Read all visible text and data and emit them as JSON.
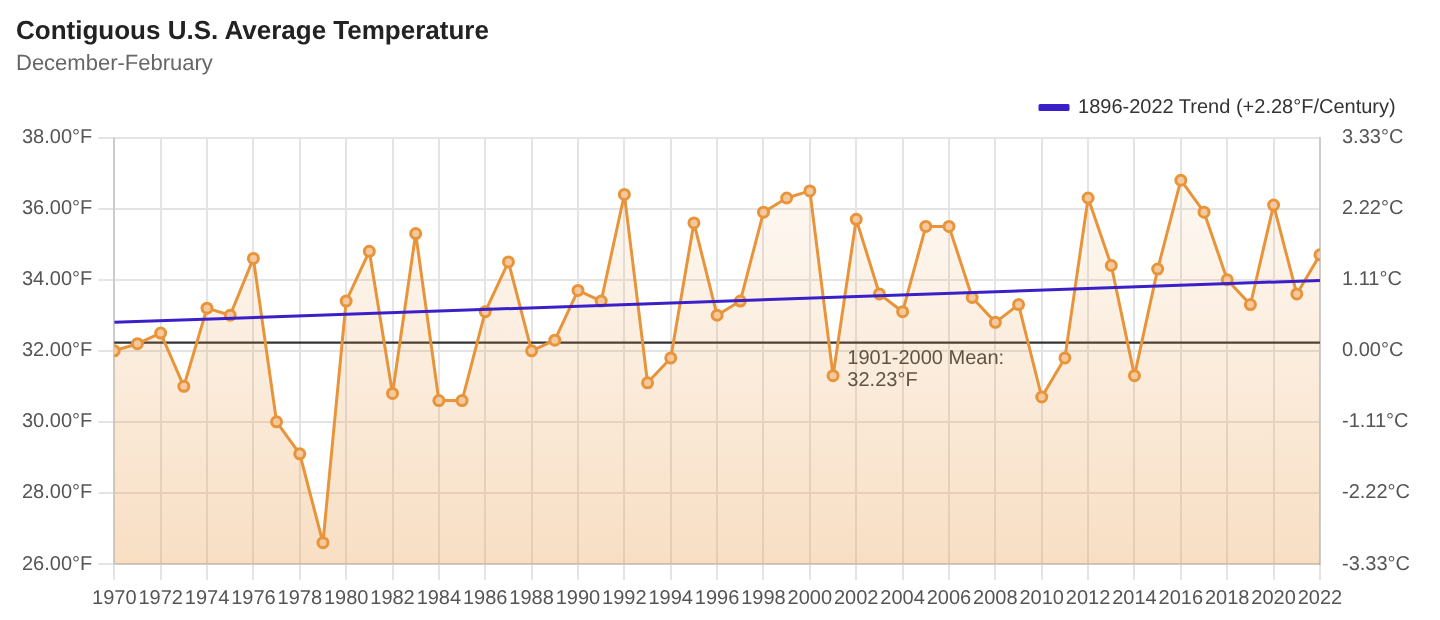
{
  "chart_data": {
    "type": "area",
    "title": "Contiguous U.S. Average Temperature",
    "subtitle": "December-February",
    "x": [
      1970,
      1971,
      1972,
      1973,
      1974,
      1975,
      1976,
      1977,
      1978,
      1979,
      1980,
      1981,
      1982,
      1983,
      1984,
      1985,
      1986,
      1987,
      1988,
      1989,
      1990,
      1991,
      1992,
      1993,
      1994,
      1995,
      1996,
      1997,
      1998,
      1999,
      2000,
      2001,
      2002,
      2003,
      2004,
      2005,
      2006,
      2007,
      2008,
      2009,
      2010,
      2011,
      2012,
      2013,
      2014,
      2015,
      2016,
      2017,
      2018,
      2019,
      2020,
      2021,
      2022
    ],
    "series": [
      {
        "color": "#e8943a",
        "marker": "circle",
        "values": [
          32.0,
          32.2,
          32.5,
          31.0,
          33.2,
          33.0,
          34.6,
          30.0,
          29.1,
          26.6,
          33.4,
          34.8,
          30.8,
          35.3,
          30.6,
          30.6,
          33.1,
          34.5,
          32.0,
          32.3,
          33.7,
          33.4,
          36.4,
          31.1,
          31.8,
          35.6,
          33.0,
          33.4,
          35.9,
          36.3,
          36.5,
          31.3,
          35.7,
          33.6,
          33.1,
          35.5,
          35.5,
          33.5,
          32.8,
          33.3,
          30.7,
          31.8,
          36.3,
          34.4,
          31.3,
          34.3,
          36.8,
          35.9,
          34.0,
          33.3,
          36.1,
          33.6,
          34.7
        ]
      },
      {
        "type": "line",
        "name": "1896-2022 Trend (+2.28°F/Century)",
        "color": "#3b1fc9",
        "marker": "none",
        "x": [
          1970,
          2022
        ],
        "values": [
          32.8,
          33.98
        ]
      }
    ],
    "xlim": [
      1970,
      2022
    ],
    "xticks": [
      1970,
      1972,
      1974,
      1976,
      1978,
      1980,
      1982,
      1984,
      1986,
      1988,
      1990,
      1992,
      1994,
      1996,
      1998,
      2000,
      2002,
      2004,
      2006,
      2008,
      2010,
      2012,
      2014,
      2016,
      2018,
      2020,
      2022
    ],
    "ylim": [
      26,
      38
    ],
    "yticks": [
      {
        "value": 26,
        "label": "26.00°F"
      },
      {
        "value": 28,
        "label": "28.00°F"
      },
      {
        "value": 30,
        "label": "30.00°F"
      },
      {
        "value": 32,
        "label": "32.00°F"
      },
      {
        "value": 34,
        "label": "34.00°F"
      },
      {
        "value": 36,
        "label": "36.00°F"
      },
      {
        "value": 38,
        "label": "38.00°F"
      }
    ],
    "y2lim": [
      -3.33,
      3.33
    ],
    "y2ticks": [
      {
        "value": -3.33,
        "label": "-3.33°C"
      },
      {
        "value": -2.22,
        "label": "-2.22°C"
      },
      {
        "value": -1.11,
        "label": "-1.11°C"
      },
      {
        "value": 0,
        "label": "0.00°C"
      },
      {
        "value": 1.11,
        "label": "1.11°C"
      },
      {
        "value": 2.22,
        "label": "2.22°C"
      },
      {
        "value": 3.33,
        "label": "3.33°C"
      }
    ],
    "ref_lines": [
      {
        "axis": "y",
        "value": 32.23,
        "label": "1901-2000 Mean: 32.23°F",
        "color": "#333333"
      }
    ],
    "grid": true,
    "legend": "top right"
  }
}
